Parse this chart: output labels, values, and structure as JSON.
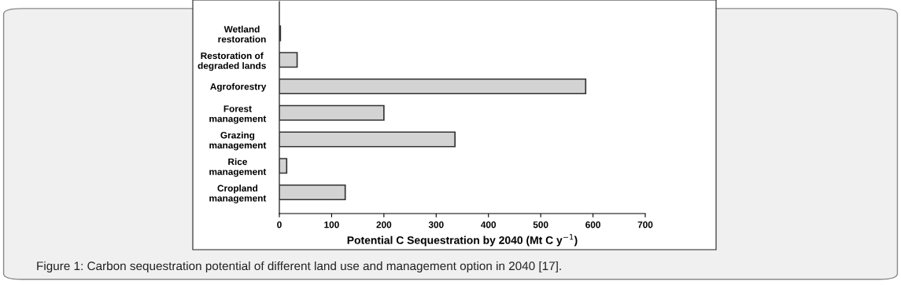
{
  "chart_data": {
    "type": "bar",
    "orientation": "horizontal",
    "categories": [
      "Wetland\nrestoration",
      "Restoration of\ndegraded lands",
      "Agroforestry",
      "Forest\nmanagement",
      "Grazing\nmanagement",
      "Rice\nmanagement",
      "Cropland\nmanagement"
    ],
    "values": [
      2,
      34,
      586,
      200,
      336,
      14,
      126
    ],
    "color": "#d3d3d3",
    "xlabel": "Potential C Sequestration by 2040 (Mt C y$^{−1}$)",
    "xlim": [
      0,
      700
    ],
    "xticks": [
      0,
      100,
      200,
      300,
      400,
      500,
      600,
      700
    ],
    "grid": false,
    "annotations": [
      "Figure 1: Carbon sequestration potential of different land use and management option in 2040 [17]."
    ]
  }
}
